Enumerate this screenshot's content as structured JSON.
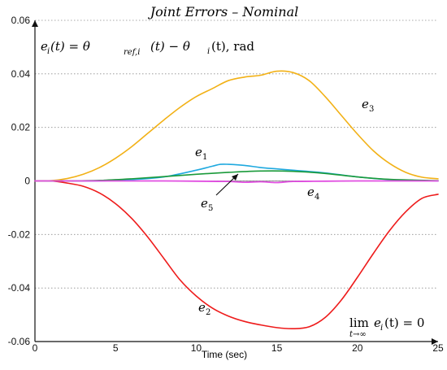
{
  "chart_data": {
    "type": "line",
    "title": "Joint Errors – Nominal",
    "xlabel": "Time (sec)",
    "ylabel": "",
    "xlim": [
      0,
      25
    ],
    "ylim": [
      -0.06,
      0.06
    ],
    "xticks": [
      0,
      5,
      10,
      15,
      20,
      25
    ],
    "yticks": [
      -0.06,
      -0.04,
      -0.02,
      0,
      0.02,
      0.04,
      0.06
    ],
    "xtick_labels": [
      "0",
      "5",
      "10",
      "15",
      "20",
      "25"
    ],
    "ytick_labels": [
      "-0.06",
      "-0.04",
      "-0.02",
      "0",
      "0.02",
      "0.04",
      "0.06"
    ],
    "grid": true,
    "annotations": {
      "equation": "e_i(t) = θ_ref,i(t) − θ_i(t), rad",
      "limit": "lim_{t→∞} e_i(t) = 0"
    },
    "series": [
      {
        "name": "e1",
        "color": "#1fa9df",
        "x": [
          0,
          2,
          4,
          6,
          8,
          10,
          11,
          11.5,
          12,
          13,
          14,
          15,
          16,
          18,
          20,
          22,
          25
        ],
        "y": [
          0,
          0,
          0,
          0.0005,
          0.0015,
          0.004,
          0.0055,
          0.0062,
          0.0062,
          0.0058,
          0.005,
          0.0045,
          0.004,
          0.003,
          0.0015,
          0.0005,
          0
        ]
      },
      {
        "name": "e2",
        "color": "#ee1b1b",
        "x": [
          0,
          1,
          2,
          3,
          4,
          5,
          6,
          7,
          8,
          9,
          10,
          11,
          12,
          13,
          14,
          15,
          16,
          17,
          18,
          19,
          20,
          21,
          22,
          23,
          24,
          25
        ],
        "y": [
          0,
          0,
          -0.0008,
          -0.002,
          -0.0045,
          -0.0085,
          -0.014,
          -0.021,
          -0.029,
          -0.037,
          -0.043,
          -0.0475,
          -0.0505,
          -0.0525,
          -0.0538,
          -0.0548,
          -0.0552,
          -0.0545,
          -0.051,
          -0.0445,
          -0.036,
          -0.027,
          -0.0185,
          -0.0115,
          -0.0065,
          -0.005
        ]
      },
      {
        "name": "e3",
        "color": "#f2b116",
        "x": [
          0,
          1,
          2,
          3,
          4,
          5,
          6,
          7,
          8,
          9,
          10,
          11,
          12,
          13,
          14,
          15,
          16,
          17,
          18,
          19,
          20,
          21,
          22,
          23,
          24,
          25
        ],
        "y": [
          0,
          0.0001,
          0.0009,
          0.0025,
          0.005,
          0.0085,
          0.0128,
          0.0178,
          0.0228,
          0.0275,
          0.0315,
          0.0345,
          0.0375,
          0.0388,
          0.0395,
          0.041,
          0.0405,
          0.0375,
          0.0315,
          0.0245,
          0.0175,
          0.0112,
          0.0065,
          0.0032,
          0.0014,
          0.0008
        ]
      },
      {
        "name": "e4",
        "color": "#1a9a3a",
        "x": [
          0,
          2,
          4,
          6,
          8,
          10,
          12,
          14,
          16,
          18,
          20,
          22,
          25
        ],
        "y": [
          0,
          0,
          0.0002,
          0.0008,
          0.0016,
          0.0025,
          0.0032,
          0.0037,
          0.0036,
          0.0028,
          0.0015,
          0.0006,
          0.0001
        ]
      },
      {
        "name": "e5",
        "color": "#e14ee1",
        "x": [
          0,
          2,
          4,
          6,
          8,
          10,
          12,
          13,
          14,
          15,
          16,
          18,
          20,
          22,
          25
        ],
        "y": [
          0,
          0,
          0,
          0,
          0,
          -0.0001,
          -0.0002,
          -0.0005,
          -0.0003,
          -0.0006,
          -0.0002,
          -0.0001,
          0,
          0,
          0
        ]
      }
    ]
  },
  "labels": {
    "title": "Joint Errors – Nominal",
    "xlabel": "Time (sec)",
    "eq_lhs": "e",
    "eq_sub": "i",
    "eq_mid": "(t) = θ",
    "eq_ref": "ref,i",
    "eq_rhs": "(t) − θ",
    "eq_sub2": "i",
    "eq_end": "(t), rad",
    "lim_main": "lim",
    "lim_sub": "t→∞",
    "lim_expr": "e",
    "lim_i": "i",
    "lim_eq": "(t) = 0",
    "series_labels": [
      "e",
      "e",
      "e",
      "e",
      "e"
    ],
    "series_subs": [
      "1",
      "2",
      "3",
      "4",
      "5"
    ]
  }
}
